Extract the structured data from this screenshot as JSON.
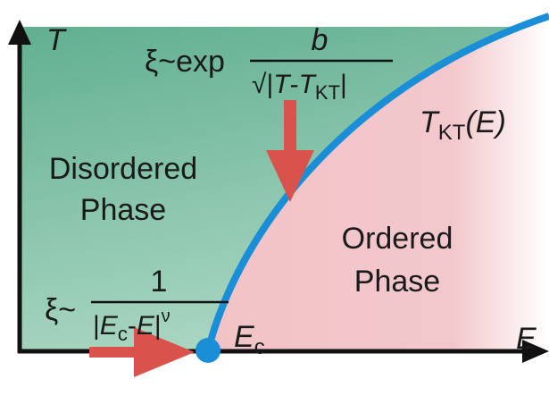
{
  "axes": {
    "y_label": "T",
    "x_label": "E"
  },
  "regions": {
    "disordered": [
      "Disordered",
      "Phase"
    ],
    "ordered": [
      "Ordered",
      "Phase"
    ]
  },
  "curve_label": {
    "symbol": "T",
    "sub": "KT",
    "arg": "(E)"
  },
  "critical_point": {
    "symbol": "E",
    "sub": "c"
  },
  "formula_kt": {
    "prefix": "ξ~exp",
    "numerator": "b",
    "denominator": [
      "√|",
      "T",
      "-",
      "T",
      "KT",
      "|"
    ]
  },
  "formula_field": {
    "prefix": "ξ~",
    "numerator": "1",
    "denominator": [
      "|",
      "E",
      "c",
      "-",
      "E",
      "|",
      "ν"
    ]
  }
}
